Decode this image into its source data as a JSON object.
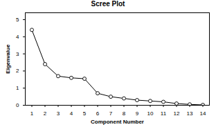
{
  "chart_data": {
    "type": "line",
    "title": "Scree Plot",
    "x_label": "Component Number",
    "y_label": "Eigenvalue",
    "x": [
      1,
      2,
      3,
      4,
      5,
      6,
      7,
      8,
      9,
      10,
      11,
      12,
      13,
      14
    ],
    "values": [
      4.4,
      2.4,
      1.7,
      1.6,
      1.55,
      0.7,
      0.5,
      0.4,
      0.3,
      0.25,
      0.2,
      0.1,
      0.05,
      0.02
    ],
    "color": "#000000",
    "marker": "circle",
    "line_style": "solid",
    "xlim": [
      0.5,
      14.5
    ],
    "xticks": [
      1,
      2,
      3,
      4,
      5,
      6,
      7,
      8,
      9,
      10,
      11,
      12,
      13,
      14
    ],
    "ylim": [
      0,
      5.4
    ],
    "yticks": [
      0,
      1,
      2,
      3,
      4,
      5
    ],
    "grid": false
  }
}
